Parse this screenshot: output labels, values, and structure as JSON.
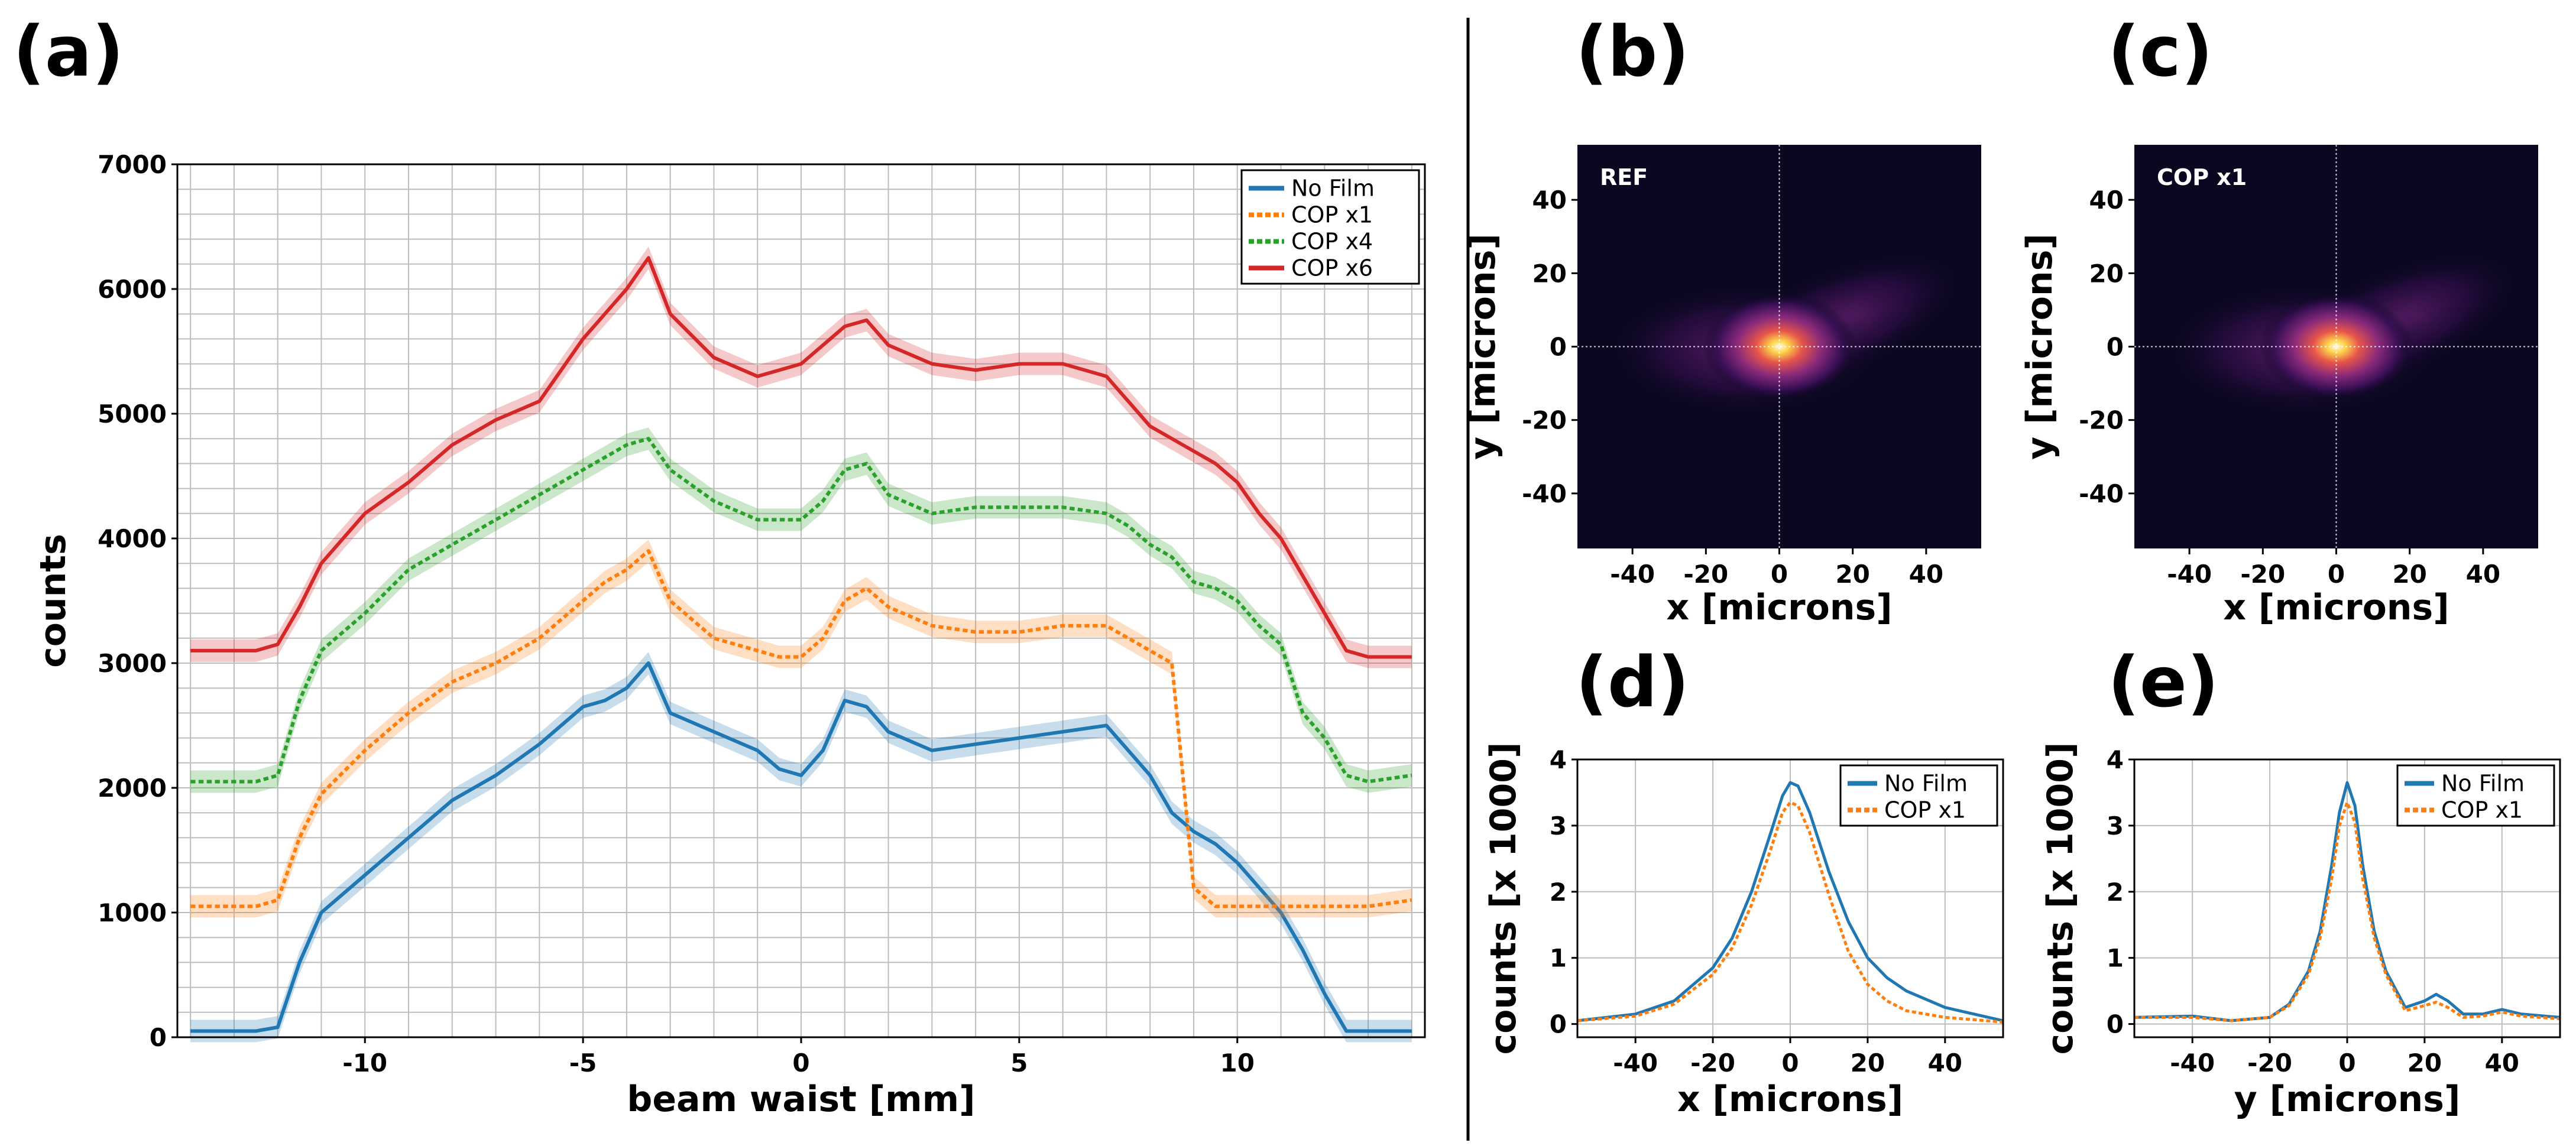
{
  "colors": {
    "no_film": "#1f77b4",
    "cop_x1": "#ff7f0e",
    "cop_x4": "#2ca02c",
    "cop_x6": "#d62728",
    "grid": "#bdbdbd",
    "heatmap_bg": "#0b0720"
  },
  "panels": {
    "a": "(a)",
    "b": "(b)",
    "c": "(c)",
    "d": "(d)",
    "e": "(e)"
  },
  "chart_data": [
    {
      "id": "a",
      "type": "line",
      "xlabel": "beam waist [mm]",
      "ylabel": "counts",
      "xlim": [
        -14.3,
        14.3
      ],
      "ylim": [
        0,
        7000
      ],
      "xticks": [
        -10,
        -5,
        0,
        5,
        10
      ],
      "yticks": [
        0,
        1000,
        2000,
        3000,
        4000,
        5000,
        6000,
        7000
      ],
      "grid": true,
      "legend_position": "top-right",
      "x": [
        -14.0,
        -12.5,
        -12.0,
        -11.5,
        -11.0,
        -10.0,
        -9.0,
        -8.0,
        -7.0,
        -6.0,
        -5.0,
        -4.5,
        -4.0,
        -3.5,
        -3.0,
        -2.0,
        -1.0,
        -0.5,
        0.0,
        0.5,
        1.0,
        1.5,
        2.0,
        3.0,
        4.0,
        5.0,
        6.0,
        7.0,
        7.5,
        8.0,
        8.5,
        9.0,
        9.5,
        10.0,
        10.5,
        11.0,
        11.5,
        12.0,
        12.5,
        13.0,
        14.0
      ],
      "series": [
        {
          "name": "No Film",
          "style": "solid",
          "values": [
            50,
            50,
            80,
            600,
            1000,
            1300,
            1600,
            1900,
            2100,
            2350,
            2650,
            2700,
            2800,
            3000,
            2600,
            2450,
            2300,
            2150,
            2100,
            2300,
            2700,
            2650,
            2450,
            2300,
            2350,
            2400,
            2450,
            2500,
            2300,
            2100,
            1800,
            1650,
            1550,
            1400,
            1200,
            1000,
            700,
            350,
            50,
            50,
            50
          ]
        },
        {
          "name": "COP x1",
          "style": "dotted",
          "values": [
            1050,
            1050,
            1100,
            1600,
            1950,
            2300,
            2600,
            2850,
            3000,
            3200,
            3500,
            3650,
            3750,
            3900,
            3500,
            3200,
            3100,
            3050,
            3050,
            3200,
            3500,
            3600,
            3450,
            3300,
            3250,
            3250,
            3300,
            3300,
            3200,
            3100,
            3000,
            1200,
            1050,
            1050,
            1050,
            1050,
            1050,
            1050,
            1050,
            1050,
            1100
          ]
        },
        {
          "name": "COP x4",
          "style": "dotted",
          "values": [
            2050,
            2050,
            2100,
            2700,
            3100,
            3400,
            3750,
            3950,
            4150,
            4350,
            4550,
            4650,
            4750,
            4800,
            4550,
            4300,
            4150,
            4150,
            4150,
            4300,
            4550,
            4600,
            4350,
            4200,
            4250,
            4250,
            4250,
            4200,
            4100,
            3950,
            3850,
            3650,
            3600,
            3500,
            3300,
            3150,
            2600,
            2400,
            2100,
            2050,
            2100
          ]
        },
        {
          "name": "COP x6",
          "style": "solid",
          "values": [
            3100,
            3100,
            3150,
            3450,
            3800,
            4200,
            4450,
            4750,
            4950,
            5100,
            5600,
            5800,
            6000,
            6250,
            5800,
            5450,
            5300,
            5350,
            5400,
            5550,
            5700,
            5750,
            5550,
            5400,
            5350,
            5400,
            5400,
            5300,
            5100,
            4900,
            4800,
            4700,
            4600,
            4450,
            4200,
            4000,
            3700,
            3400,
            3100,
            3050,
            3050
          ]
        }
      ]
    },
    {
      "id": "b",
      "type": "heatmap",
      "inset_label": "REF",
      "xlabel": "x [microns]",
      "ylabel": "y [microns]",
      "xlim": [
        -55,
        55
      ],
      "ylim": [
        -55,
        55
      ],
      "xticks": [
        -40,
        -20,
        0,
        20,
        40
      ],
      "yticks": [
        40,
        20,
        0,
        -20,
        -40
      ],
      "peak": [
        0,
        0
      ]
    },
    {
      "id": "c",
      "type": "heatmap",
      "inset_label": "COP x1",
      "xlabel": "x [microns]",
      "ylabel": "y [microns]",
      "xlim": [
        -55,
        55
      ],
      "ylim": [
        -55,
        55
      ],
      "xticks": [
        -40,
        -20,
        0,
        20,
        40
      ],
      "yticks": [
        40,
        20,
        0,
        -20,
        -40
      ],
      "peak": [
        0,
        0
      ]
    },
    {
      "id": "d",
      "type": "line",
      "xlabel": "x [microns]",
      "ylabel": "counts [x 1000]",
      "xlim": [
        -55,
        55
      ],
      "ylim": [
        -0.2,
        4
      ],
      "xticks": [
        -40,
        -20,
        0,
        20,
        40
      ],
      "yticks": [
        0,
        1,
        2,
        3,
        4
      ],
      "legend_position": "top-right",
      "x": [
        -55,
        -40,
        -30,
        -20,
        -15,
        -10,
        -5,
        -2,
        0,
        2,
        5,
        10,
        15,
        20,
        25,
        30,
        40,
        55
      ],
      "series": [
        {
          "name": "No Film",
          "style": "solid",
          "values": [
            0.05,
            0.15,
            0.35,
            0.85,
            1.3,
            2.0,
            2.9,
            3.45,
            3.65,
            3.6,
            3.2,
            2.3,
            1.55,
            1.0,
            0.7,
            0.5,
            0.25,
            0.05
          ]
        },
        {
          "name": "COP x1",
          "style": "dotted",
          "values": [
            0.05,
            0.12,
            0.3,
            0.75,
            1.15,
            1.8,
            2.65,
            3.2,
            3.35,
            3.3,
            2.9,
            1.95,
            1.1,
            0.6,
            0.35,
            0.2,
            0.1,
            0.03
          ]
        }
      ]
    },
    {
      "id": "e",
      "type": "line",
      "xlabel": "y [microns]",
      "ylabel": "counts [x 1000]",
      "xlim": [
        -55,
        55
      ],
      "ylim": [
        -0.2,
        4
      ],
      "xticks": [
        -40,
        -20,
        0,
        20,
        40
      ],
      "yticks": [
        0,
        1,
        2,
        3,
        4
      ],
      "legend_position": "top-right",
      "x": [
        -55,
        -40,
        -30,
        -20,
        -15,
        -10,
        -7,
        -4,
        -2,
        0,
        2,
        4,
        7,
        10,
        15,
        20,
        23,
        26,
        30,
        35,
        40,
        45,
        55
      ],
      "series": [
        {
          "name": "No Film",
          "style": "solid",
          "values": [
            0.1,
            0.12,
            0.05,
            0.1,
            0.3,
            0.8,
            1.4,
            2.4,
            3.2,
            3.65,
            3.3,
            2.4,
            1.4,
            0.8,
            0.25,
            0.35,
            0.45,
            0.35,
            0.15,
            0.15,
            0.22,
            0.15,
            0.1
          ]
        },
        {
          "name": "COP x1",
          "style": "dotted",
          "values": [
            0.1,
            0.1,
            0.05,
            0.1,
            0.28,
            0.75,
            1.3,
            2.2,
            3.0,
            3.35,
            3.05,
            2.2,
            1.3,
            0.75,
            0.2,
            0.28,
            0.33,
            0.25,
            0.1,
            0.12,
            0.18,
            0.12,
            0.08
          ]
        }
      ]
    }
  ]
}
